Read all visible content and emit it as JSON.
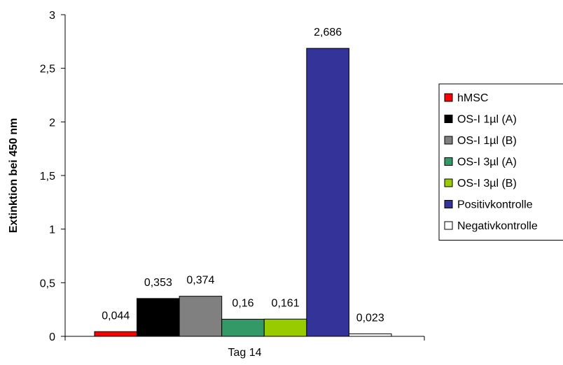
{
  "chart_data": {
    "type": "bar",
    "categories": [
      "Tag 14"
    ],
    "series": [
      {
        "name": "hMSC",
        "values": [
          0.044
        ],
        "label": "0,044",
        "color": "#ff0000"
      },
      {
        "name": "OS-I 1µl (A)",
        "values": [
          0.353
        ],
        "label": "0,353",
        "color": "#000000"
      },
      {
        "name": "OS-I 1µl (B)",
        "values": [
          0.374
        ],
        "label": "0,374",
        "color": "#808080"
      },
      {
        "name": "OS-I 3µl (A)",
        "values": [
          0.16
        ],
        "label": "0,16",
        "color": "#339966"
      },
      {
        "name": "OS-I 3µl (B)",
        "values": [
          0.161
        ],
        "label": "0,161",
        "color": "#99cc00"
      },
      {
        "name": "Positivkontrolle",
        "values": [
          2.686
        ],
        "label": "2,686",
        "color": "#333399"
      },
      {
        "name": "Negativkontrolle",
        "values": [
          0.023
        ],
        "label": "0,023",
        "color": "#ffffff"
      }
    ],
    "ylabel": "Extinktion bei 450 nm",
    "xlabel": "",
    "ylim": [
      0,
      3
    ],
    "yticks": [
      {
        "value": 0,
        "label": "0"
      },
      {
        "value": 0.5,
        "label": "0,5"
      },
      {
        "value": 1,
        "label": "1"
      },
      {
        "value": 1.5,
        "label": "1,5"
      },
      {
        "value": 2,
        "label": "2"
      },
      {
        "value": 2.5,
        "label": "2,5"
      },
      {
        "value": 3,
        "label": "3"
      }
    ],
    "grid": false,
    "legend_position": "right"
  }
}
